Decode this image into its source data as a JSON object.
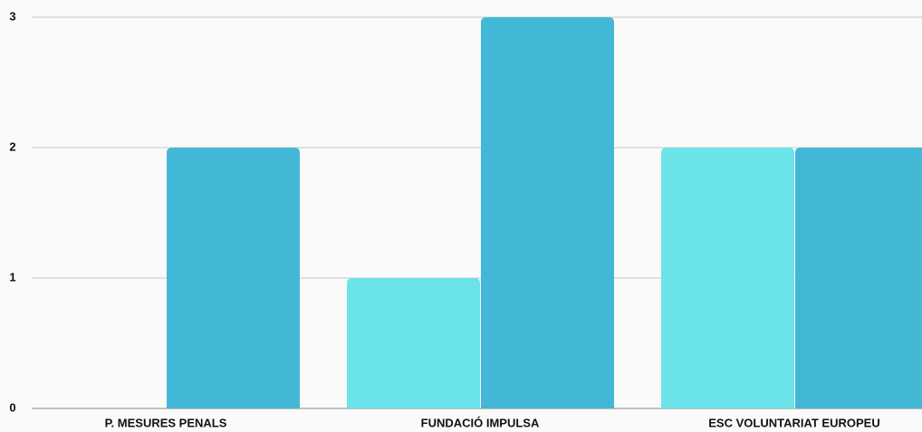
{
  "chart_data": {
    "type": "bar",
    "categories": [
      "P. MESURES PENALS",
      "FUNDACIÓ IMPULSA",
      "ESC VOLUNTARIAT EUROPEU"
    ],
    "series": [
      {
        "color": "#6ae3e9",
        "values": [
          0,
          1,
          2
        ]
      },
      {
        "color": "#42b8d6",
        "values": [
          2,
          3,
          2
        ]
      }
    ],
    "ylim": [
      0,
      3
    ],
    "yticks": [
      0,
      1,
      2,
      3
    ],
    "grid": true
  }
}
